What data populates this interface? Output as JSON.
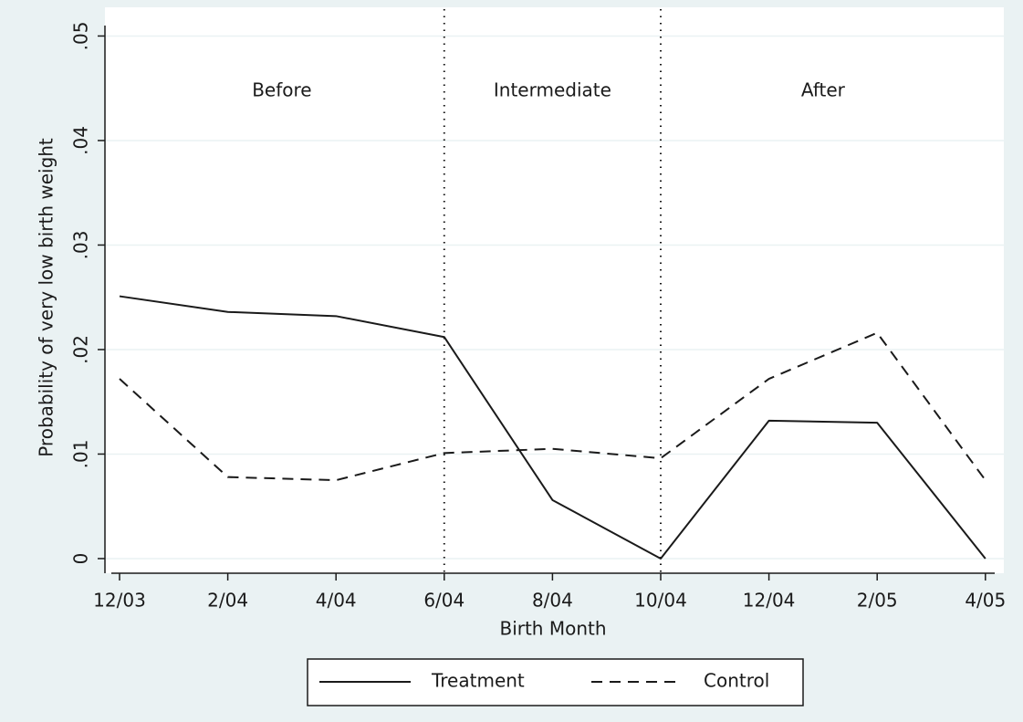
{
  "chart_data": {
    "type": "line",
    "x_label": "Birth Month",
    "y_label": "Probability of very low birth weight",
    "categories": [
      "12/03",
      "2/04",
      "4/04",
      "6/04",
      "8/04",
      "10/04",
      "12/04",
      "2/05",
      "4/05"
    ],
    "series": [
      {
        "name": "Treatment",
        "color": "#1a1a1a",
        "dash": "solid",
        "values": [
          0.0251,
          0.0236,
          0.0232,
          0.0212,
          0.0056,
          0.0,
          0.0132,
          0.013,
          0.0
        ]
      },
      {
        "name": "Control",
        "color": "#1a1a1a",
        "dash": "dashed",
        "values": [
          0.0172,
          0.0078,
          0.0075,
          0.0101,
          0.0105,
          0.0096,
          0.0172,
          0.0216,
          0.0075
        ]
      }
    ],
    "ylim": [
      -0.0014,
      0.051
    ],
    "yticks": [
      0,
      {
        "value": 0.01,
        "label": ".01"
      },
      {
        "value": 0.02,
        "label": ".02"
      },
      {
        "value": 0.03,
        "label": ".03"
      },
      {
        "value": 0.04,
        "label": ".04"
      },
      {
        "value": 0.05,
        "label": ".05"
      }
    ],
    "grid": true,
    "dividers": [
      "6/04",
      "10/04"
    ],
    "period_labels": [
      "Before",
      "Intermediate",
      "After"
    ],
    "legend": "bottom"
  }
}
